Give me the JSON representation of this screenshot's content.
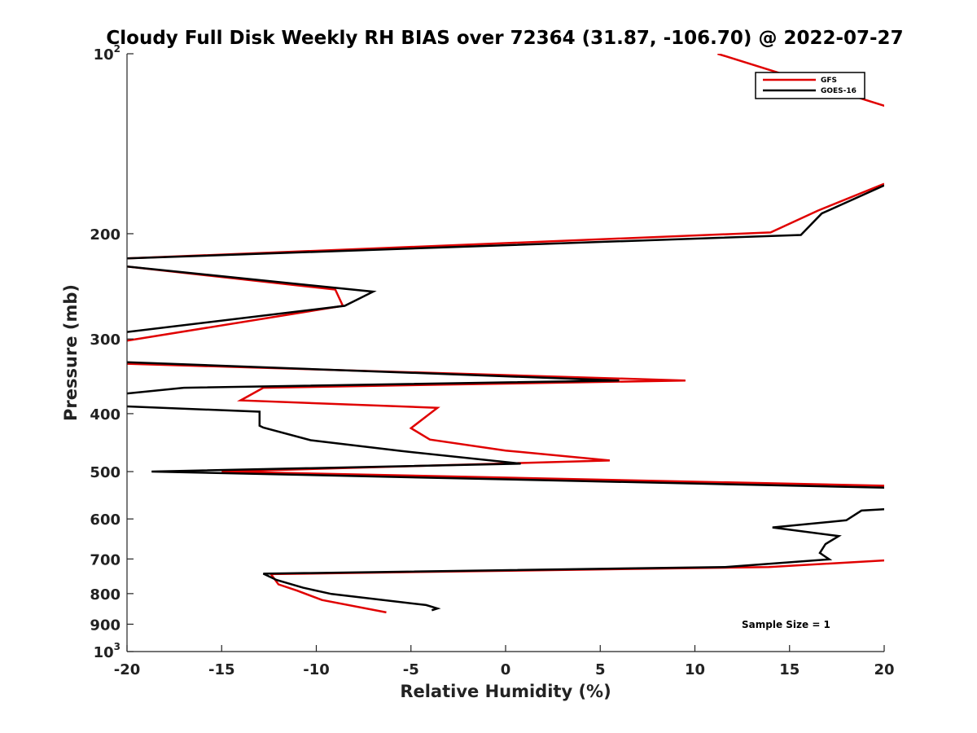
{
  "chart_data": {
    "type": "line",
    "title": "Cloudy Full Disk Weekly RH BIAS over 72364 (31.87, -106.70) @ 2022-07-27",
    "xlabel": "Relative Humidity (%)",
    "ylabel": "Pressure (mb)",
    "xlim": [
      -20,
      20
    ],
    "ylim": [
      100,
      1000
    ],
    "y_scale": "log",
    "y_reversed": true,
    "grid": false,
    "legend_position": "top-right",
    "annotation": "Sample Size = 1",
    "x_ticks": [
      -20,
      -15,
      -10,
      -5,
      0,
      5,
      10,
      15,
      20
    ],
    "x_tick_labels": [
      "-20",
      "-15",
      "-10",
      "-5",
      "0",
      "5",
      "10",
      "15",
      "20"
    ],
    "y_ticks": [
      100,
      200,
      300,
      400,
      500,
      600,
      700,
      800,
      900,
      1000
    ],
    "y_tick_labels": [
      {
        "base": "10",
        "sup": "2"
      },
      {
        "base": "200",
        "sup": ""
      },
      {
        "base": "300",
        "sup": ""
      },
      {
        "base": "400",
        "sup": ""
      },
      {
        "base": "500",
        "sup": ""
      },
      {
        "base": "600",
        "sup": ""
      },
      {
        "base": "700",
        "sup": ""
      },
      {
        "base": "800",
        "sup": ""
      },
      {
        "base": "900",
        "sup": ""
      },
      {
        "base": "10",
        "sup": "3"
      }
    ],
    "series": [
      {
        "name": "GFS",
        "color": "#e00000",
        "segments": [
          [
            [
              11.2,
              100
            ],
            [
              21.0,
              125
            ]
          ],
          [
            [
              20.0,
              165
            ],
            [
              16.5,
              183
            ],
            [
              14.0,
              199
            ],
            [
              -20.0,
              220
            ]
          ],
          [
            [
              -20.0,
              227
            ],
            [
              -9.0,
              248
            ],
            [
              -8.6,
              264
            ],
            [
              -20.0,
              302
            ]
          ],
          [
            [
              -20.0,
              330
            ],
            [
              9.5,
              352
            ],
            [
              -12.8,
              362
            ],
            [
              -14.0,
              380
            ],
            [
              -3.6,
              391
            ],
            [
              -5.0,
              423
            ],
            [
              -4.0,
              442
            ],
            [
              0.0,
              461
            ],
            [
              5.5,
              479
            ],
            [
              -15.0,
              500
            ],
            [
              20.0,
              528
            ]
          ],
          [
            [
              20.0,
              704
            ],
            [
              13.9,
              722
            ],
            [
              -12.4,
              742
            ],
            [
              -12.0,
              772
            ],
            [
              -11.0,
              791
            ],
            [
              -9.7,
              820
            ],
            [
              -6.3,
              860
            ]
          ]
        ]
      },
      {
        "name": "GOES-16",
        "color": "#000000",
        "segments": [
          [
            [
              20.0,
              166
            ],
            [
              16.7,
              185
            ],
            [
              15.6,
              201
            ],
            [
              -20.0,
              220
            ]
          ],
          [
            [
              -20.0,
              227
            ],
            [
              -7.0,
              250
            ],
            [
              -8.5,
              264
            ],
            [
              -20.0,
              292
            ]
          ],
          [
            [
              -20.0,
              328
            ],
            [
              6.0,
              352
            ],
            [
              -17.0,
              362
            ],
            [
              -20.0,
              370
            ]
          ],
          [
            [
              -20.0,
              389
            ],
            [
              -13.0,
              397
            ],
            [
              -13.0,
              419
            ],
            [
              -12.8,
              422
            ],
            [
              -10.3,
              443
            ],
            [
              -5.5,
              462
            ],
            [
              0.8,
              485
            ],
            [
              -18.7,
              500
            ],
            [
              20.0,
              532
            ]
          ],
          [
            [
              20.0,
              578
            ],
            [
              18.8,
              581
            ],
            [
              18.0,
              603
            ],
            [
              14.1,
              620
            ],
            [
              17.6,
              641
            ],
            [
              16.9,
              661
            ],
            [
              16.6,
              684
            ],
            [
              17.1,
              701
            ],
            [
              11.6,
              722
            ],
            [
              -12.8,
              741
            ],
            [
              -12.1,
              759
            ],
            [
              -10.7,
              782
            ],
            [
              -9.2,
              801
            ],
            [
              -4.2,
              836
            ],
            [
              -3.6,
              847
            ],
            [
              -3.9,
              853
            ]
          ]
        ]
      }
    ]
  }
}
